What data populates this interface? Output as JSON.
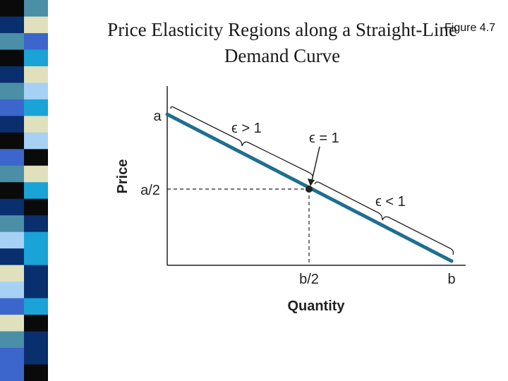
{
  "slide": {
    "title_line1": "Price Elasticity Regions along a Straight-Line",
    "title_line2": "Demand Curve",
    "figure_label": "Figure 4.7"
  },
  "stripe_colors": [
    "#4a8fa6",
    "#0a2f6e",
    "#3d66cc",
    "#0a0a0a",
    "#e0e0bc",
    "#4a8fa6",
    "#1aa3d6",
    "#0a2f6e",
    "#a6d1f5",
    "#3d66cc",
    "#e0e0bc",
    "#0a0a0a",
    "#0a0a0a",
    "#4a8fa6",
    "#1aa3d6",
    "#0a2f6e",
    "#0a2f6e",
    "#a6d1f5",
    "#1aa3d6",
    "#e0e0bc",
    "#0a2f6e",
    "#3d66cc",
    "#0a0a0a"
  ],
  "diagram": {
    "y_axis_label": "Price",
    "x_axis_label": "Quantity",
    "y_tick_top": "a",
    "y_tick_mid": "a/2",
    "x_tick_mid": "b/2",
    "x_tick_end": "b",
    "elastic_label": "ϵ > 1",
    "unit_label": "ϵ = 1",
    "inelastic_label": "ϵ < 1",
    "colors": {
      "curve": "#1f6f8f",
      "axis": "#222222"
    }
  }
}
